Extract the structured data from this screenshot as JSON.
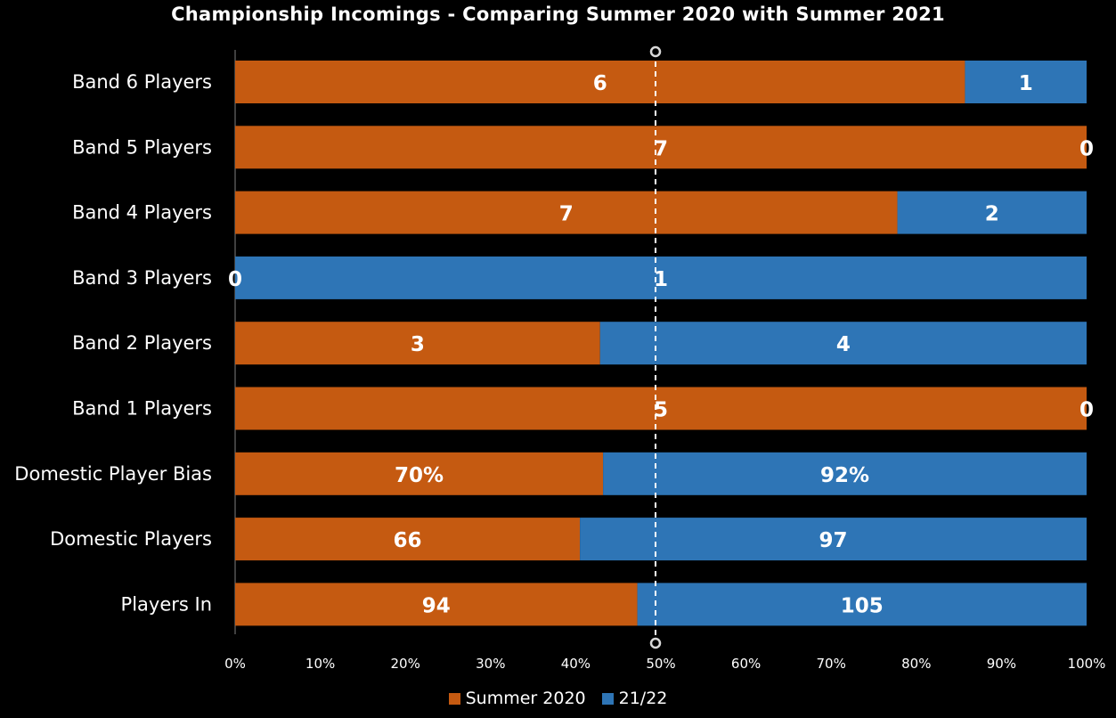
{
  "chart_data": {
    "type": "bar",
    "orientation": "horizontal",
    "stacked": "percent",
    "title": "Championship Incomings - Comparing Summer 2020 with Summer 2021",
    "categories": [
      "Band 6 Players",
      "Band 5 Players",
      "Band 4 Players",
      "Band 3 Players",
      "Band 2 Players",
      "Band 1 Players",
      "Domestic Player Bias",
      "Domestic Players",
      "Players In"
    ],
    "series": [
      {
        "name": "Summer 2020",
        "color": "#C55A11",
        "values": [
          6,
          7,
          7,
          0,
          3,
          5,
          70,
          66,
          94
        ],
        "labels": [
          "6",
          "7",
          "7",
          "0",
          "3",
          "5",
          "70%",
          "66",
          "94"
        ]
      },
      {
        "name": "21/22",
        "color": "#2E75B6",
        "values": [
          1,
          0,
          2,
          1,
          4,
          0,
          92,
          97,
          105
        ],
        "labels": [
          "1",
          "0",
          "2",
          "1",
          "4",
          "0",
          "92%",
          "97",
          "105"
        ]
      }
    ],
    "x_ticks": [
      "0%",
      "10%",
      "20%",
      "30%",
      "40%",
      "50%",
      "60%",
      "70%",
      "80%",
      "90%",
      "100%"
    ],
    "xlim": [
      0,
      1
    ],
    "reference_line": {
      "x": 0.5,
      "style": "dashed"
    },
    "legend": "bottom-center"
  }
}
